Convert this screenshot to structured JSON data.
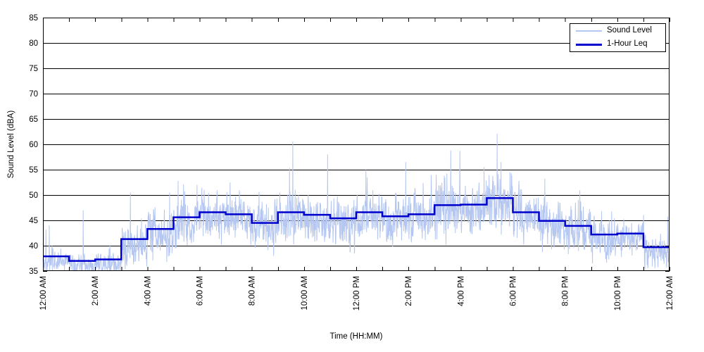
{
  "chart_data": {
    "type": "line",
    "title": "",
    "xlabel": "Time (HH:MM)",
    "ylabel": "Sound Level (dBA)",
    "ylim": [
      35,
      85
    ],
    "ytick_step": 5,
    "ytick_labels": [
      "35",
      "40",
      "45",
      "50",
      "55",
      "60",
      "65",
      "70",
      "75",
      "80",
      "85"
    ],
    "xtick_labels": [
      "12:00 AM",
      "2:00 AM",
      "4:00 AM",
      "6:00 AM",
      "8:00 AM",
      "10:00 AM",
      "12:00 PM",
      "2:00 PM",
      "4:00 PM",
      "6:00 PM",
      "8:00 PM",
      "10:00 PM",
      "12:00 AM"
    ],
    "x_hours": 24,
    "x_ticks_every_hours": 1,
    "x_labels_every_hours": 2,
    "grid": "horizontal-solid-black",
    "legend": {
      "position": "top-right",
      "border_color": "#000000",
      "background": "#ffffff"
    },
    "series": [
      {
        "name": "Sound Level",
        "color": "#b5c7f1",
        "style": "raw-noisy-line",
        "line_width": 1,
        "points_per_hour": 120,
        "baseline_offset": -0.9,
        "noise_seed": 987123,
        "ar_coef": 0.35,
        "spike_prob": 0.012,
        "noise_sd_by_hour": [
          1.1,
          1.1,
          1.1,
          2.0,
          2.3,
          2.2,
          2.2,
          2.2,
          2.2,
          2.2,
          2.2,
          2.2,
          2.2,
          2.2,
          2.2,
          2.5,
          2.5,
          2.5,
          2.4,
          2.2,
          2.0,
          1.8,
          1.6,
          1.5
        ],
        "clip_min": 35.03,
        "spikes": [
          {
            "t": 1.54,
            "v": 47.0
          },
          {
            "t": 3.35,
            "v": 50.5
          },
          {
            "t": 4.85,
            "v": 50.5
          },
          {
            "t": 5.9,
            "v": 52.0
          },
          {
            "t": 7.17,
            "v": 52.5
          },
          {
            "t": 9.57,
            "v": 60.5
          },
          {
            "t": 10.9,
            "v": 58.0
          },
          {
            "t": 12.42,
            "v": 53.5
          },
          {
            "t": 13.9,
            "v": 56.5
          },
          {
            "t": 15.62,
            "v": 58.8
          },
          {
            "t": 15.97,
            "v": 58.7
          },
          {
            "t": 16.9,
            "v": 55.5
          },
          {
            "t": 17.4,
            "v": 62.1
          },
          {
            "t": 17.55,
            "v": 56.5
          },
          {
            "t": 19.2,
            "v": 49.5
          },
          {
            "t": 20.4,
            "v": 48.5
          }
        ]
      },
      {
        "name": "1-Hour Leq",
        "color": "#0000cd",
        "style": "step",
        "line_width": 2.5,
        "hourly_leq_dba": [
          37.9,
          37.0,
          37.3,
          41.3,
          43.3,
          45.6,
          46.6,
          46.2,
          44.5,
          46.6,
          46.1,
          45.4,
          46.6,
          45.8,
          46.2,
          48.0,
          48.1,
          49.4,
          46.6,
          44.9,
          43.9,
          42.2,
          42.4,
          39.7
        ]
      }
    ]
  },
  "layout_colors": {
    "axis": "#000000",
    "grid": "#000000",
    "text": "#000000",
    "background": "#ffffff"
  }
}
